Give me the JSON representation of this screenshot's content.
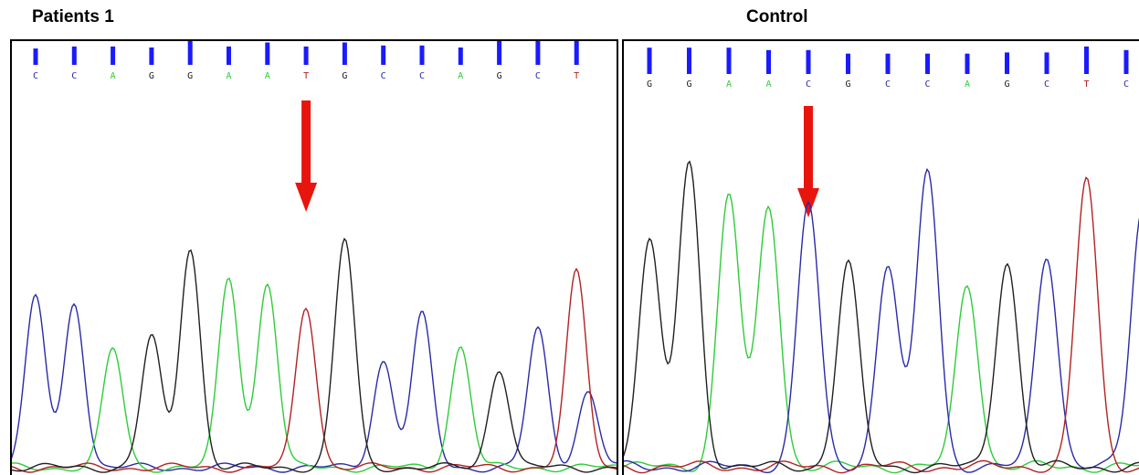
{
  "colors": {
    "A": "#2ecc3a",
    "C": "#2a2aa8",
    "G": "#202020",
    "T": "#b22222",
    "bar": "#1a1aff",
    "arrow": "#e8150f"
  },
  "chart_data": [
    {
      "type": "line",
      "title": "Patients 1",
      "bases": [
        "C",
        "C",
        "A",
        "G",
        "G",
        "A",
        "A",
        "T",
        "G",
        "C",
        "C",
        "A",
        "G",
        "C",
        "T"
      ],
      "quality": [
        0.45,
        0.55,
        0.55,
        0.5,
        0.85,
        0.55,
        0.75,
        0.55,
        0.75,
        0.6,
        0.6,
        0.5,
        0.85,
        0.85,
        0.85
      ],
      "mutation_index": 7,
      "series": [
        {
          "name": "C",
          "peaks": [
            [
              0,
              0.72
            ],
            [
              1,
              0.7
            ],
            [
              9,
              0.45
            ],
            [
              10,
              0.64
            ],
            [
              13,
              0.58
            ],
            [
              14.3,
              0.32
            ]
          ]
        },
        {
          "name": "A",
          "peaks": [
            [
              2,
              0.5
            ],
            [
              5,
              0.8
            ],
            [
              6,
              0.78
            ],
            [
              11,
              0.51
            ]
          ]
        },
        {
          "name": "G",
          "peaks": [
            [
              3,
              0.55
            ],
            [
              4,
              0.93
            ],
            [
              8,
              0.96
            ],
            [
              12,
              0.42
            ]
          ]
        },
        {
          "name": "T",
          "peaks": [
            [
              7,
              0.68
            ],
            [
              14,
              0.82
            ]
          ]
        }
      ]
    },
    {
      "type": "line",
      "title": "Control",
      "bases": [
        "G",
        "G",
        "A",
        "A",
        "C",
        "G",
        "C",
        "C",
        "A",
        "G",
        "C",
        "T",
        "C"
      ],
      "quality": [
        0.8,
        0.8,
        0.8,
        0.7,
        0.7,
        0.55,
        0.55,
        0.55,
        0.55,
        0.6,
        0.6,
        0.85,
        0.7
      ],
      "mutation_index": 4,
      "series": [
        {
          "name": "G",
          "peaks": [
            [
              0,
              0.74
            ],
            [
              1,
              1.0
            ],
            [
              5,
              0.67
            ],
            [
              9,
              0.68
            ]
          ]
        },
        {
          "name": "A",
          "peaks": [
            [
              2,
              0.9
            ],
            [
              3,
              0.86
            ],
            [
              8,
              0.6
            ]
          ]
        },
        {
          "name": "C",
          "peaks": [
            [
              4,
              0.87
            ],
            [
              6,
              0.67
            ],
            [
              7,
              0.98
            ],
            [
              10,
              0.7
            ],
            [
              12.4,
              0.85
            ]
          ]
        },
        {
          "name": "T",
          "peaks": [
            [
              11,
              0.95
            ]
          ]
        }
      ]
    }
  ]
}
